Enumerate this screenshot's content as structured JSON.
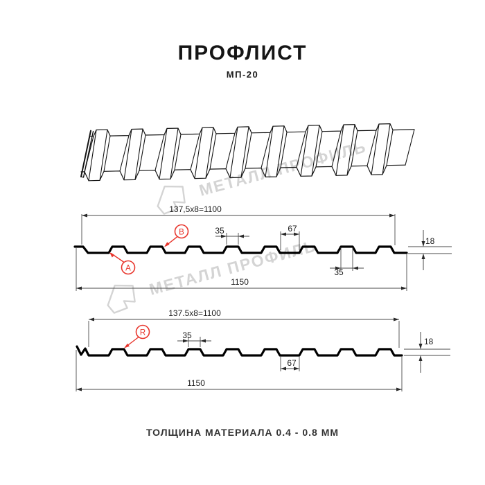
{
  "page": {
    "title": "ПРОФЛИСТ",
    "subtitle": "МП-20",
    "footer": "ТОЛЩИНА МАТЕРИАЛА 0.4 - 0.8 ММ"
  },
  "watermark": {
    "text": "МЕТАЛЛ ПРОФИЛЬ",
    "color": "#d4d4d4"
  },
  "colors": {
    "red": "#e8342b",
    "line": "#141414",
    "dim": "#4a4a4a"
  },
  "section_a": {
    "pitch_dim": "137,5x8=1100",
    "rib_top_dim": "35",
    "valley_dim": "67",
    "height_dim": "18",
    "rib_top_dim2": "35",
    "overall_dim": "1150",
    "label_a": "A",
    "label_b": "B"
  },
  "section_r": {
    "pitch_dim": "137.5x8=1100",
    "rib_top_dim": "35",
    "valley_dim": "67",
    "height_dim": "18",
    "overall_dim": "1150",
    "label_r": "R"
  }
}
